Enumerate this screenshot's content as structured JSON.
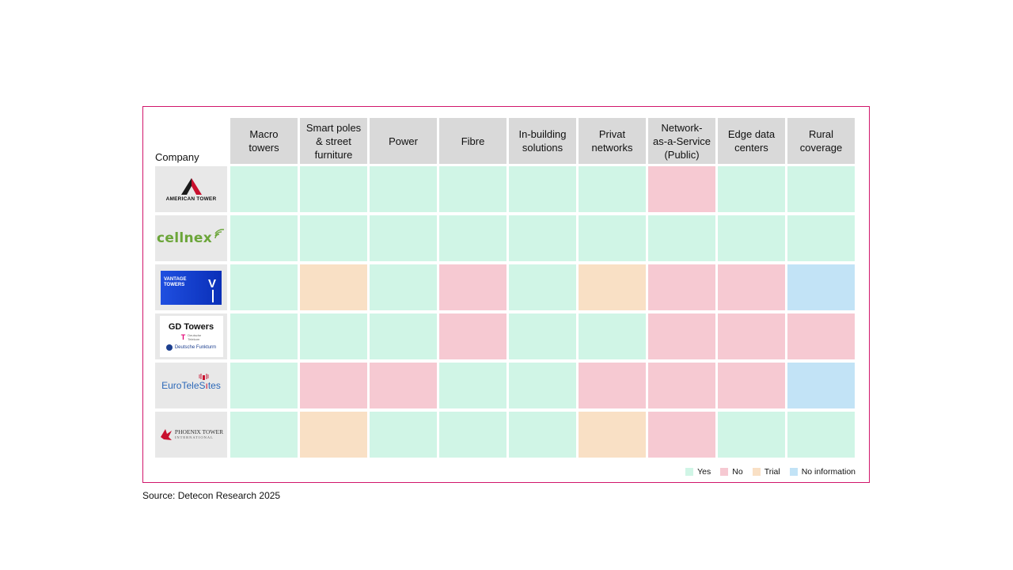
{
  "chart_data": {
    "type": "table",
    "row_header": "Company",
    "columns": [
      "Macro towers",
      "Smart poles & street furniture",
      "Power",
      "Fibre",
      "In-building solutions",
      "Privat networks",
      "Network-as-a-Service (Public)",
      "Edge data centers",
      "Rural coverage"
    ],
    "column_lines": [
      [
        "Macro",
        "towers"
      ],
      [
        "Smart poles",
        "& street",
        "furniture"
      ],
      [
        "Power"
      ],
      [
        "Fibre"
      ],
      [
        "In-building",
        "solutions"
      ],
      [
        "Privat",
        "networks"
      ],
      [
        "Network-",
        "as-a-Service",
        "(Public)"
      ],
      [
        "Edge data",
        "centers"
      ],
      [
        "Rural",
        "coverage"
      ]
    ],
    "rows": [
      {
        "company": "AMERICAN TOWER",
        "values": [
          "Yes",
          "Yes",
          "Yes",
          "Yes",
          "Yes",
          "Yes",
          "No",
          "Yes",
          "Yes"
        ]
      },
      {
        "company": "cellnex",
        "values": [
          "Yes",
          "Yes",
          "Yes",
          "Yes",
          "Yes",
          "Yes",
          "Yes",
          "Yes",
          "Yes"
        ]
      },
      {
        "company": "VANTAGE TOWERS",
        "values": [
          "Yes",
          "Trial",
          "Yes",
          "No",
          "Yes",
          "Trial",
          "No",
          "No",
          "No information"
        ]
      },
      {
        "company": "GD Towers",
        "values": [
          "Yes",
          "Yes",
          "Yes",
          "No",
          "Yes",
          "Yes",
          "No",
          "No",
          "No"
        ]
      },
      {
        "company": "EuroTeleSites",
        "values": [
          "Yes",
          "No",
          "No",
          "Yes",
          "Yes",
          "No",
          "No",
          "No",
          "No information"
        ]
      },
      {
        "company": "PHOENIX TOWER",
        "values": [
          "Yes",
          "Trial",
          "Yes",
          "Yes",
          "Yes",
          "Trial",
          "No",
          "Yes",
          "Yes"
        ]
      }
    ],
    "legend": [
      {
        "label": "Yes",
        "color": "#d0f5e6"
      },
      {
        "label": "No",
        "color": "#f6c9d2"
      },
      {
        "label": "Trial",
        "color": "#f9e0c5"
      },
      {
        "label": "No information",
        "color": "#c2e3f6"
      }
    ]
  },
  "logos": {
    "american_tower": "AMERICAN TOWER",
    "cellnex": "cellnex",
    "vantage_1": "VANTAGE",
    "vantage_2": "TOWERS",
    "vantage_mark": "V",
    "gd_towers": "GD Towers",
    "gd_telekom_1": "Deutsche",
    "gd_telekom_2": "Telekom",
    "gd_funkturm": "Deutsche Funkturm",
    "euroteles_1": "EuroTeleS",
    "euroteles_2": "tes",
    "phoenix_1": "PHOENIX TOWER",
    "phoenix_2": "INTERNATIONAL"
  },
  "source": "Source: Detecon Research 2025",
  "colors": {
    "frame": "#d1166b",
    "header_bg": "#d9d9d9",
    "logo_bg": "#e8e8e8"
  }
}
